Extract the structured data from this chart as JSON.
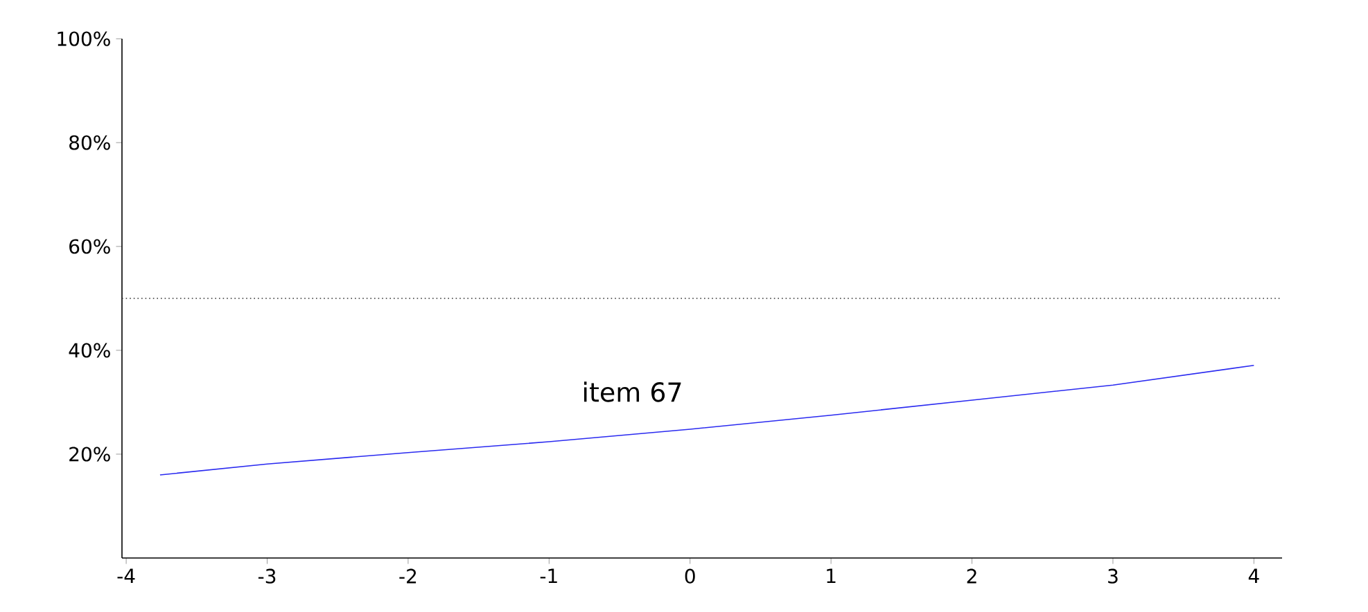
{
  "chart_data": {
    "type": "line",
    "x": [
      -3.76,
      -3,
      -2,
      -1,
      0,
      1,
      2,
      3,
      4
    ],
    "series": [
      {
        "color": "#2a2af0",
        "values": [
          16,
          18.1,
          20.3,
          22.4,
          24.8,
          27.5,
          30.4,
          33.3,
          37.1
        ]
      }
    ],
    "xlim": [
      -4.03,
      4.2
    ],
    "ylim": [
      0,
      100
    ],
    "xticks": [
      -4,
      -3,
      -2,
      -1,
      0,
      1,
      2,
      3,
      4
    ],
    "yticks": [
      {
        "value": 20,
        "label": "20%"
      },
      {
        "value": 40,
        "label": "40%"
      },
      {
        "value": 60,
        "label": "60%"
      },
      {
        "value": 80,
        "label": "80%"
      },
      {
        "value": 100,
        "label": "100%"
      }
    ],
    "ref_lines": [
      {
        "axis": "y",
        "value": 50,
        "line_style": "dotted",
        "color": "#333333"
      }
    ],
    "annotations": [
      "item 67"
    ],
    "marker": "none",
    "line_style": "solid"
  }
}
